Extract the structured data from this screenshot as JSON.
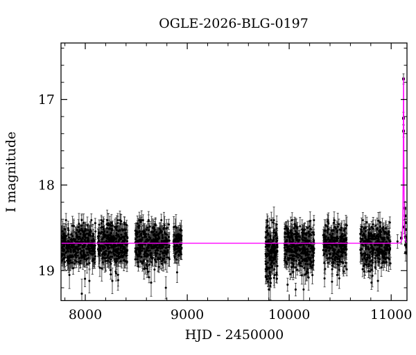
{
  "title": "OGLE-2026-BLG-0197",
  "axes": {
    "xlabel": "HJD - 2450000",
    "ylabel": "I magnitude",
    "xlim": [
      7762,
      11155
    ],
    "ylim_bright_top": 16.34,
    "ylim_faint_bottom": 19.35,
    "x_major_ticks": [
      8000,
      9000,
      10000,
      11000
    ],
    "x_minor_step": 200,
    "y_major_ticks": [
      17,
      18,
      19
    ],
    "y_minor_step": 0.2,
    "y_axis_inverted": true,
    "grid": "off",
    "legend": "none"
  },
  "colors": {
    "background": "#ffffff",
    "axis": "#000000",
    "data_point": "#000000",
    "error_bar": "#3c3c3c",
    "model_curve": "#ff00ff"
  },
  "chart_data": {
    "type": "scatter",
    "title": "OGLE-2026-BLG-0197",
    "xlabel": "HJD - 2450000",
    "ylabel": "I magnitude",
    "xlim": [
      7762,
      11155
    ],
    "ylim": [
      19.35,
      16.34
    ],
    "baseline_mag": 18.68,
    "model": {
      "kind": "paczynski-microlensing",
      "t0": 11121.5,
      "u0": 0.17,
      "tE": 8,
      "baseline_mag": 18.68,
      "peak_mag": 16.75,
      "color": "#ff00ff"
    },
    "seed": 20260197,
    "seasons": [
      {
        "name": "season-1",
        "t_min": 7765,
        "t_max": 8100,
        "n": 360,
        "mag_mean": 18.71,
        "mag_sigma": 0.125
      },
      {
        "name": "season-2",
        "t_min": 8125,
        "t_max": 8415,
        "n": 350,
        "mag_mean": 18.69,
        "mag_sigma": 0.12
      },
      {
        "name": "season-3",
        "t_min": 8490,
        "t_max": 8825,
        "n": 360,
        "mag_mean": 18.7,
        "mag_sigma": 0.13
      },
      {
        "name": "season-4",
        "t_min": 8865,
        "t_max": 8945,
        "n": 95,
        "mag_mean": 18.68,
        "mag_sigma": 0.1
      },
      {
        "name": "season-5",
        "t_min": 9768,
        "t_max": 9885,
        "n": 185,
        "mag_mean": 18.76,
        "mag_sigma": 0.155
      },
      {
        "name": "season-6",
        "t_min": 9952,
        "t_max": 10245,
        "n": 330,
        "mag_mean": 18.72,
        "mag_sigma": 0.135
      },
      {
        "name": "season-7",
        "t_min": 10333,
        "t_max": 10565,
        "n": 270,
        "mag_mean": 18.7,
        "mag_sigma": 0.125
      },
      {
        "name": "season-8",
        "t_min": 10694,
        "t_max": 10993,
        "n": 310,
        "mag_mean": 18.7,
        "mag_sigma": 0.125
      }
    ],
    "mag_clamp": [
      18.41,
      19.24
    ],
    "err_model": {
      "base": 0.05,
      "spread": 0.045,
      "min": 0.04,
      "max": 0.24
    },
    "outlier_points": [
      [
        7844,
        19.05,
        0.16
      ],
      [
        7966,
        19.27,
        0.17
      ],
      [
        8040,
        19.12,
        0.14
      ],
      [
        8265,
        19.12,
        0.15
      ],
      [
        8320,
        19.05,
        0.18
      ],
      [
        8646,
        19.14,
        0.16
      ],
      [
        8790,
        19.2,
        0.13
      ],
      [
        8900,
        19.02,
        0.12
      ],
      [
        9800,
        19.22,
        0.14
      ],
      [
        9815,
        19.18,
        0.16
      ],
      [
        10141,
        19.22,
        0.18
      ],
      [
        10190,
        19.08,
        0.15
      ],
      [
        10420,
        19.13,
        0.14
      ],
      [
        10470,
        19.05,
        0.12
      ],
      [
        10816,
        19.06,
        0.13
      ],
      [
        10870,
        19.12,
        0.12
      ],
      [
        11062,
        18.66,
        0.08
      ]
    ],
    "peak_points": [
      [
        11120.6,
        17.22,
        0.07
      ],
      [
        11121.3,
        16.76,
        0.06
      ],
      [
        11121.9,
        17.37,
        0.07
      ],
      [
        11100,
        18.62,
        0.07
      ],
      [
        11128,
        18.49,
        0.08
      ],
      [
        11133,
        18.27,
        0.08
      ],
      [
        11136,
        18.36,
        0.07
      ],
      [
        11138,
        18.44,
        0.08
      ],
      [
        11139,
        18.52,
        0.07
      ],
      [
        11140,
        18.61,
        0.08
      ],
      [
        11141,
        18.7,
        0.09
      ],
      [
        11142,
        18.79,
        0.1
      ],
      [
        11146,
        18.66,
        0.08
      ],
      [
        11150,
        18.72,
        0.09
      ]
    ]
  }
}
